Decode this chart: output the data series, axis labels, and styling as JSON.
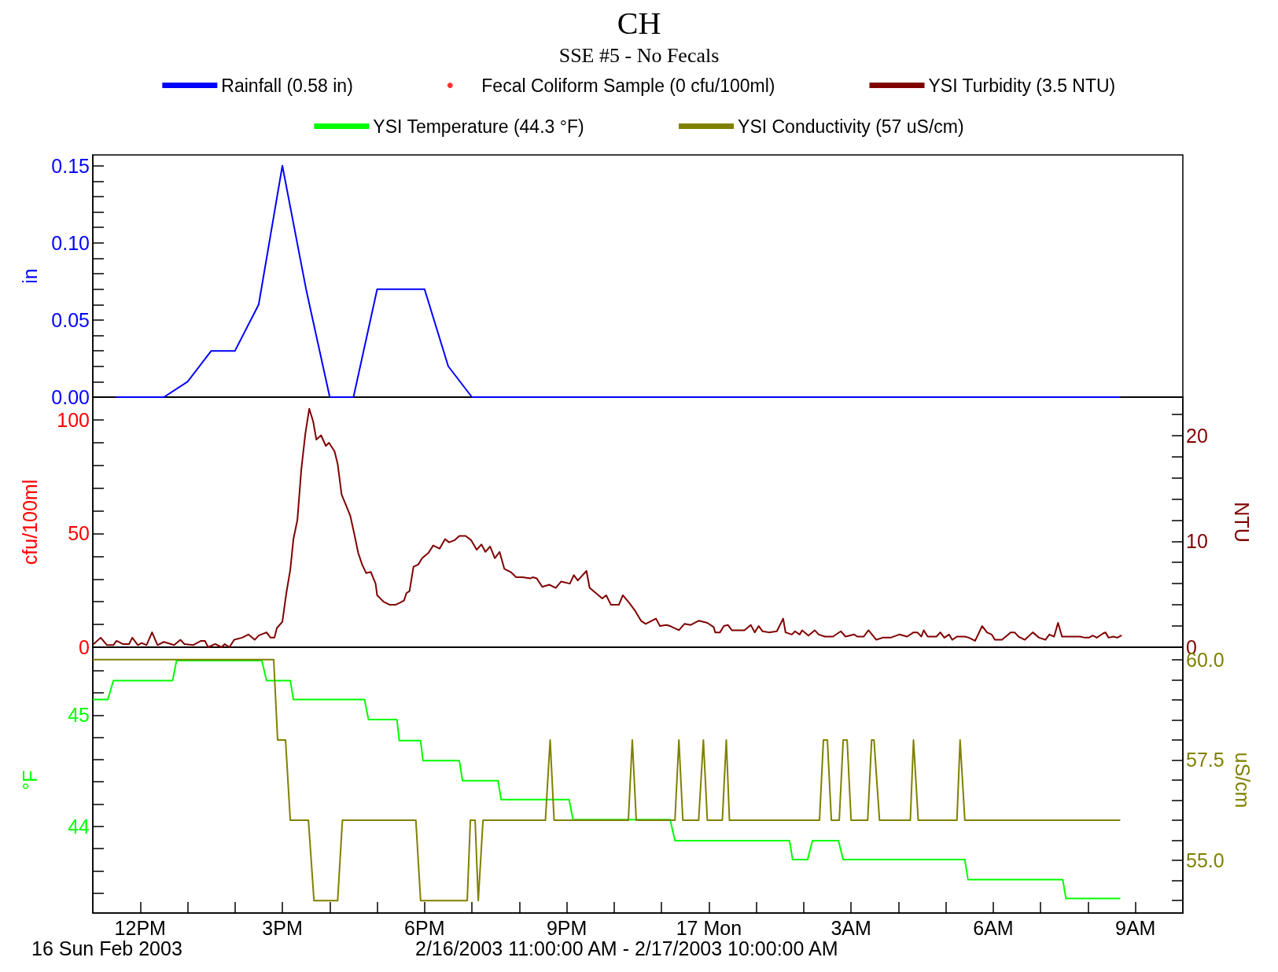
{
  "chart_data": [
    {
      "type": "line",
      "title": "CH",
      "subtitle": "SSE #5 - No Fecals",
      "legend": "top",
      "tick_labels": "y",
      "ylabel": "in",
      "xlim": [
        "2003-02-16T11:00",
        "2003-02-17T10:00"
      ],
      "ylim": [
        0,
        0.157
      ],
      "yticks": [
        {
          "value": 0,
          "label": "0.00"
        },
        {
          "value": 0.01,
          "label": null
        },
        {
          "value": 0.02,
          "label": null
        },
        {
          "value": 0.03,
          "label": null
        },
        {
          "value": 0.04,
          "label": null
        },
        {
          "value": 0.05,
          "label": "0.05"
        },
        {
          "value": 0.06,
          "label": null
        },
        {
          "value": 0.07,
          "label": null
        },
        {
          "value": 0.08,
          "label": null
        },
        {
          "value": 0.09,
          "label": null
        },
        {
          "value": 0.1,
          "label": "0.10"
        },
        {
          "value": 0.11,
          "label": null
        },
        {
          "value": 0.12,
          "label": null
        },
        {
          "value": 0.13,
          "label": null
        },
        {
          "value": 0.14,
          "label": null
        },
        {
          "value": 0.15,
          "label": "0.15"
        }
      ],
      "series": [
        {
          "name": "Rainfall (0.58 in)",
          "color": "#0000ff",
          "x": [
            "2003-02-16T11:30",
            "2003-02-16T12:30",
            "2003-02-16T13:00",
            "2003-02-16T13:30",
            "2003-02-16T14:00",
            "2003-02-16T14:30",
            "2003-02-16T15:00",
            "2003-02-16T15:30",
            "2003-02-16T16:00",
            "2003-02-16T16:30",
            "2003-02-16T17:00",
            "2003-02-16T17:30",
            "2003-02-16T18:00",
            "2003-02-16T18:30",
            "2003-02-16T19:00",
            "2003-02-17T08:40"
          ],
          "values": [
            0,
            0,
            0.01,
            0.03,
            0.03,
            0.06,
            0.15,
            0.07,
            0,
            0,
            0.07,
            0.07,
            0.07,
            0.02,
            0,
            0
          ]
        }
      ]
    },
    {
      "type": "line",
      "legend": "top",
      "tick_labels": "y",
      "ylabel": "cfu/100ml",
      "y2label": "NTU",
      "xlim": [
        "2003-02-16T11:00",
        "2003-02-17T10:00"
      ],
      "ylim": [
        0,
        110
      ],
      "y2lim": [
        0,
        23.6
      ],
      "yticks": [
        0,
        {
          "value": 10,
          "label": null
        },
        {
          "value": 20,
          "label": null
        },
        {
          "value": 30,
          "label": null
        },
        {
          "value": 40,
          "label": null
        },
        50,
        {
          "value": 60,
          "label": null
        },
        {
          "value": 70,
          "label": null
        },
        {
          "value": 80,
          "label": null
        },
        {
          "value": 90,
          "label": null
        },
        100
      ],
      "y2ticks": [
        0,
        {
          "value": 2,
          "label": null
        },
        {
          "value": 4,
          "label": null
        },
        {
          "value": 6,
          "label": null
        },
        {
          "value": 8,
          "label": null
        },
        10,
        {
          "value": 12,
          "label": null
        },
        {
          "value": 14,
          "label": null
        },
        {
          "value": 16,
          "label": null
        },
        {
          "value": 18,
          "label": null
        },
        20,
        {
          "value": 22,
          "label": null
        }
      ],
      "series": [
        {
          "name": "Fecal Coliform Sample (0 cfu/100ml)",
          "type": "scatter",
          "marker": "circle",
          "color": "#ff0000"
        },
        {
          "name": "YSI Turbidity (3.5 NTU)",
          "axis": "y2",
          "color": "#800000",
          "x": [
            "2003-02-16T11:01",
            "2003-02-16T11:10",
            "2003-02-16T11:18",
            "2003-02-16T11:26",
            "2003-02-16T11:30",
            "2003-02-16T11:38",
            "2003-02-16T11:46",
            "2003-02-16T11:50",
            "2003-02-16T11:57",
            "2003-02-16T12:02",
            "2003-02-16T12:08",
            "2003-02-16T12:15",
            "2003-02-16T12:22",
            "2003-02-16T12:30",
            "2003-02-16T12:43",
            "2003-02-16T12:51",
            "2003-02-16T12:56",
            "2003-02-16T13:07",
            "2003-02-16T13:17",
            "2003-02-16T13:22",
            "2003-02-16T13:26",
            "2003-02-16T13:35",
            "2003-02-16T13:43",
            "2003-02-16T13:47",
            "2003-02-16T13:53",
            "2003-02-16T13:59",
            "2003-02-16T14:09",
            "2003-02-16T14:17",
            "2003-02-16T14:25",
            "2003-02-16T14:30",
            "2003-02-16T14:40",
            "2003-02-16T14:45",
            "2003-02-16T14:50",
            "2003-02-16T14:53",
            "2003-02-16T15:00",
            "2003-02-16T15:05",
            "2003-02-16T15:10",
            "2003-02-16T15:14",
            "2003-02-16T15:19",
            "2003-02-16T15:24",
            "2003-02-16T15:29",
            "2003-02-16T15:34",
            "2003-02-16T15:39",
            "2003-02-16T15:43",
            "2003-02-16T15:49",
            "2003-02-16T15:55",
            "2003-02-16T15:59",
            "2003-02-16T16:06",
            "2003-02-16T16:10",
            "2003-02-16T16:15",
            "2003-02-16T16:20",
            "2003-02-16T16:26",
            "2003-02-16T16:31",
            "2003-02-16T16:36",
            "2003-02-16T16:41",
            "2003-02-16T16:46",
            "2003-02-16T16:52",
            "2003-02-16T16:58",
            "2003-02-16T17:00",
            "2003-02-16T17:08",
            "2003-02-16T17:16",
            "2003-02-16T17:23",
            "2003-02-16T17:29",
            "2003-02-16T17:34",
            "2003-02-16T17:37",
            "2003-02-16T17:41",
            "2003-02-16T17:46",
            "2003-02-16T17:52",
            "2003-02-16T17:57",
            "2003-02-16T18:05",
            "2003-02-16T18:11",
            "2003-02-16T18:19",
            "2003-02-16T18:26",
            "2003-02-16T18:31",
            "2003-02-16T18:38",
            "2003-02-16T18:44",
            "2003-02-16T18:52",
            "2003-02-16T18:59",
            "2003-02-16T19:06",
            "2003-02-16T19:12",
            "2003-02-16T19:17",
            "2003-02-16T19:23",
            "2003-02-16T19:29",
            "2003-02-16T19:35",
            "2003-02-16T19:41",
            "2003-02-16T19:49",
            "2003-02-16T19:56",
            "2003-02-16T20:04",
            "2003-02-16T20:14",
            "2003-02-16T20:17",
            "2003-02-16T20:22",
            "2003-02-16T20:29",
            "2003-02-16T20:38",
            "2003-02-16T20:46",
            "2003-02-16T20:53",
            "2003-02-16T21:04",
            "2003-02-16T21:09",
            "2003-02-16T21:14",
            "2003-02-16T21:25",
            "2003-02-16T21:29",
            "2003-02-16T21:37",
            "2003-02-16T21:45",
            "2003-02-16T21:50",
            "2003-02-16T21:56",
            "2003-02-16T22:06",
            "2003-02-16T22:11",
            "2003-02-16T22:19",
            "2003-02-16T22:26",
            "2003-02-16T22:34",
            "2003-02-16T22:40",
            "2003-02-16T22:53",
            "2003-02-16T22:58",
            "2003-02-16T23:06",
            "2003-02-16T23:11",
            "2003-02-16T23:22",
            "2003-02-16T23:29",
            "2003-02-16T23:37",
            "2003-02-16T23:47",
            "2003-02-16T23:58",
            "2003-02-17T00:06",
            "2003-02-17T00:08",
            "2003-02-17T00:14",
            "2003-02-17T00:19",
            "2003-02-17T00:24",
            "2003-02-17T00:29",
            "2003-02-17T00:45",
            "2003-02-17T00:53",
            "2003-02-17T00:58",
            "2003-02-17T01:03",
            "2003-02-17T01:08",
            "2003-02-17T01:16",
            "2003-02-17T01:26",
            "2003-02-17T01:34",
            "2003-02-17T01:37",
            "2003-02-17T01:45",
            "2003-02-17T01:49",
            "2003-02-17T01:55",
            "2003-02-17T01:58",
            "2003-02-17T02:06",
            "2003-02-17T02:14",
            "2003-02-17T02:19",
            "2003-02-17T02:27",
            "2003-02-17T02:37",
            "2003-02-17T02:47",
            "2003-02-17T02:53",
            "2003-02-17T03:04",
            "2003-02-17T03:08",
            "2003-02-17T03:16",
            "2003-02-17T03:22",
            "2003-02-17T03:32",
            "2003-02-17T03:40",
            "2003-02-17T03:50",
            "2003-02-17T04:01",
            "2003-02-17T04:11",
            "2003-02-17T04:19",
            "2003-02-17T04:24",
            "2003-02-17T04:29",
            "2003-02-17T04:32",
            "2003-02-17T04:37",
            "2003-02-17T04:48",
            "2003-02-17T04:53",
            "2003-02-17T04:58",
            "2003-02-17T05:04",
            "2003-02-17T05:08",
            "2003-02-17T05:14",
            "2003-02-17T05:24",
            "2003-02-17T05:29",
            "2003-02-17T05:37",
            "2003-02-17T05:46",
            "2003-02-17T05:52",
            "2003-02-17T05:58",
            "2003-02-17T06:02",
            "2003-02-17T06:11",
            "2003-02-17T06:22",
            "2003-02-17T06:27",
            "2003-02-17T06:32",
            "2003-02-17T06:40",
            "2003-02-17T06:50",
            "2003-02-17T06:58",
            "2003-02-17T07:06",
            "2003-02-17T07:11",
            "2003-02-17T07:17",
            "2003-02-17T07:22",
            "2003-02-17T07:27",
            "2003-02-17T07:50",
            "2003-02-17T07:56",
            "2003-02-17T08:01",
            "2003-02-17T08:06",
            "2003-02-17T08:11",
            "2003-02-17T08:19",
            "2003-02-17T08:22",
            "2003-02-17T08:26",
            "2003-02-17T08:32",
            "2003-02-17T08:37",
            "2003-02-17T08:42"
          ],
          "values": [
            0.3,
            0.9,
            0.2,
            0.2,
            0.6,
            0.3,
            0.3,
            0.9,
            0.2,
            0.4,
            0.2,
            1.4,
            0.2,
            0.5,
            0.2,
            0.7,
            0.3,
            0.2,
            0.6,
            0.6,
            0.0,
            0.3,
            0.0,
            0.3,
            0.0,
            0.7,
            0.9,
            1.2,
            0.7,
            1.1,
            1.4,
            0.9,
            0.9,
            1.8,
            2.4,
            5.1,
            7.3,
            10.2,
            12.0,
            16.8,
            20.1,
            22.5,
            21.3,
            19.6,
            20.0,
            19.0,
            19.3,
            18.5,
            17.3,
            14.4,
            13.5,
            12.4,
            10.7,
            8.9,
            7.8,
            7.0,
            7.1,
            6.0,
            4.9,
            4.3,
            4.0,
            4.0,
            4.2,
            4.4,
            5.1,
            5.3,
            7.6,
            7.8,
            8.4,
            8.9,
            9.6,
            9.3,
            10.2,
            9.9,
            10.1,
            10.5,
            10.5,
            10.1,
            9.2,
            9.7,
            9.0,
            9.5,
            8.4,
            9.0,
            7.4,
            7.1,
            6.6,
            6.6,
            6.5,
            6.6,
            6.5,
            5.7,
            5.9,
            5.6,
            6.2,
            6.0,
            6.8,
            6.3,
            7.2,
            5.6,
            5.1,
            4.6,
            4.9,
            4.0,
            4.0,
            4.9,
            4.2,
            3.5,
            2.5,
            2.2,
            2.7,
            2.0,
            2.1,
            2.0,
            1.6,
            2.2,
            2.1,
            2.5,
            2.3,
            1.9,
            1.4,
            1.4,
            2.0,
            2.1,
            1.6,
            1.6,
            2.1,
            1.4,
            2.0,
            1.5,
            1.4,
            1.5,
            2.7,
            1.4,
            1.2,
            1.5,
            1.2,
            1.6,
            1.1,
            1.6,
            1.2,
            1.0,
            1.0,
            1.5,
            1.0,
            1.2,
            1.0,
            1.0,
            1.6,
            0.7,
            0.9,
            0.9,
            1.2,
            1.0,
            1.4,
            1.4,
            1.0,
            1.6,
            1.0,
            1.0,
            1.4,
            0.9,
            1.2,
            0.7,
            1.0,
            1.0,
            0.9,
            0.6,
            2.0,
            1.4,
            1.2,
            0.7,
            0.7,
            1.4,
            1.4,
            1.0,
            0.7,
            1.4,
            0.9,
            0.7,
            1.2,
            1.0,
            2.3,
            1.0,
            1.0,
            0.9,
            0.9,
            1.1,
            0.9,
            1.3,
            1.4,
            0.9,
            1.0,
            0.9,
            1.1
          ]
        }
      ]
    },
    {
      "type": "line",
      "legend": "top",
      "ylabel": "°F",
      "y2label": "uS/cm",
      "xlim": [
        "2003-02-16T11:00",
        "2003-02-17T10:00"
      ],
      "ylim": [
        43.22,
        45.61
      ],
      "y2lim": [
        53.69,
        60.31
      ],
      "xticks": [
        {
          "value": "2003-02-16T12:00",
          "label": "12PM"
        },
        {
          "value": "2003-02-16T13:00",
          "label": null
        },
        {
          "value": "2003-02-16T14:00",
          "label": null
        },
        {
          "value": "2003-02-16T15:00",
          "label": "3PM"
        },
        {
          "value": "2003-02-16T16:00",
          "label": null
        },
        {
          "value": "2003-02-16T17:00",
          "label": null
        },
        {
          "value": "2003-02-16T18:00",
          "label": "6PM"
        },
        {
          "value": "2003-02-16T19:00",
          "label": null
        },
        {
          "value": "2003-02-16T20:00",
          "label": null
        },
        {
          "value": "2003-02-16T21:00",
          "label": "9PM"
        },
        {
          "value": "2003-02-16T22:00",
          "label": null
        },
        {
          "value": "2003-02-16T23:00",
          "label": null
        },
        {
          "value": "2003-02-17T00:00",
          "label": "17 Mon"
        },
        {
          "value": "2003-02-17T01:00",
          "label": null
        },
        {
          "value": "2003-02-17T02:00",
          "label": null
        },
        {
          "value": "2003-02-17T03:00",
          "label": "3AM"
        },
        {
          "value": "2003-02-17T04:00",
          "label": null
        },
        {
          "value": "2003-02-17T05:00",
          "label": null
        },
        {
          "value": "2003-02-17T06:00",
          "label": "6AM"
        },
        {
          "value": "2003-02-17T07:00",
          "label": null
        },
        {
          "value": "2003-02-17T08:00",
          "label": null
        },
        {
          "value": "2003-02-17T09:00",
          "label": "9AM"
        }
      ],
      "yticks": [
        {
          "value": 43.4,
          "label": null
        },
        {
          "value": 43.6,
          "label": null
        },
        {
          "value": 43.8,
          "label": null
        },
        44,
        {
          "value": 44.2,
          "label": null
        },
        {
          "value": 44.4,
          "label": null
        },
        {
          "value": 44.6,
          "label": null
        },
        {
          "value": 44.8,
          "label": null
        },
        45,
        {
          "value": 45.2,
          "label": null
        },
        {
          "value": 45.4,
          "label": null
        }
      ],
      "y2ticks": [
        {
          "value": 54,
          "label": null
        },
        {
          "value": 54.5,
          "label": null
        },
        {
          "value": 55,
          "label": "55.0"
        },
        {
          "value": 55.5,
          "label": null
        },
        {
          "value": 56,
          "label": null
        },
        {
          "value": 56.5,
          "label": null
        },
        {
          "value": 57,
          "label": null
        },
        57.5,
        {
          "value": 58,
          "label": null
        },
        {
          "value": 58.5,
          "label": null
        },
        {
          "value": 59,
          "label": null
        },
        {
          "value": 59.5,
          "label": null
        },
        {
          "value": 60,
          "label": "60.0"
        }
      ],
      "annotations": [
        "16 Sun Feb 2003",
        "2/16/2003 11:00:00 AM - 2/17/2003 10:00:00 AM"
      ],
      "series": [
        {
          "name": "YSI Temperature (44.3 °F)",
          "color": "#00ff00",
          "x": [
            "2003-02-16T11:01",
            "2003-02-16T11:19",
            "2003-02-16T11:26",
            "2003-02-16T12:41",
            "2003-02-16T12:46",
            "2003-02-16T14:34",
            "2003-02-16T14:40",
            "2003-02-16T15:10",
            "2003-02-16T15:14",
            "2003-02-16T16:44",
            "2003-02-16T16:49",
            "2003-02-16T17:25",
            "2003-02-16T17:28",
            "2003-02-16T17:55",
            "2003-02-16T17:58",
            "2003-02-16T18:44",
            "2003-02-16T18:48",
            "2003-02-16T19:33",
            "2003-02-16T19:37",
            "2003-02-16T21:03",
            "2003-02-16T21:08",
            "2003-02-16T23:11",
            "2003-02-16T23:17",
            "2003-02-17T01:42",
            "2003-02-17T01:46",
            "2003-02-17T02:05",
            "2003-02-17T02:11",
            "2003-02-17T02:44",
            "2003-02-17T02:50",
            "2003-02-17T05:24",
            "2003-02-17T05:28",
            "2003-02-17T07:28",
            "2003-02-17T07:32",
            "2003-02-17T08:40"
          ],
          "values": [
            45.14,
            45.14,
            45.31,
            45.31,
            45.49,
            45.49,
            45.31,
            45.31,
            45.14,
            45.14,
            44.96,
            44.96,
            44.77,
            44.77,
            44.59,
            44.59,
            44.41,
            44.41,
            44.24,
            44.24,
            44.06,
            44.06,
            43.87,
            43.87,
            43.7,
            43.7,
            43.87,
            43.87,
            43.7,
            43.7,
            43.52,
            43.52,
            43.35,
            43.35
          ]
        },
        {
          "name": "YSI Conductivity (57 uS/cm)",
          "axis": "y2",
          "color": "#808000",
          "x": [
            "2003-02-16T11:01",
            "2003-02-16T14:49",
            "2003-02-16T14:54",
            "2003-02-16T15:04",
            "2003-02-16T15:10",
            "2003-02-16T15:33",
            "2003-02-16T15:40",
            "2003-02-16T16:10",
            "2003-02-16T16:16",
            "2003-02-16T17:49",
            "2003-02-16T17:55",
            "2003-02-16T18:54",
            "2003-02-16T18:58",
            "2003-02-16T19:04",
            "2003-02-16T19:08",
            "2003-02-16T19:14",
            "2003-02-16T20:33",
            "2003-02-16T20:39",
            "2003-02-16T20:44",
            "2003-02-16T22:18",
            "2003-02-16T22:23",
            "2003-02-16T22:28",
            "2003-02-16T23:17",
            "2003-02-16T23:22",
            "2003-02-16T23:27",
            "2003-02-16T23:47",
            "2003-02-16T23:53",
            "2003-02-16T23:58",
            "2003-02-17T00:17",
            "2003-02-17T00:22",
            "2003-02-17T00:26",
            "2003-02-17T02:20",
            "2003-02-17T02:25",
            "2003-02-17T02:30",
            "2003-02-17T02:35",
            "2003-02-17T02:45",
            "2003-02-17T02:50",
            "2003-02-17T02:55",
            "2003-02-17T03:00",
            "2003-02-17T03:21",
            "2003-02-17T03:26",
            "2003-02-17T03:29",
            "2003-02-17T03:36",
            "2003-02-17T04:15",
            "2003-02-17T04:19",
            "2003-02-17T04:25",
            "2003-02-17T05:14",
            "2003-02-17T05:18",
            "2003-02-17T05:24",
            "2003-02-17T08:40"
          ],
          "values": [
            60,
            60,
            58,
            58,
            56,
            56,
            54,
            54,
            56,
            56,
            54,
            54,
            56,
            56,
            54,
            56,
            56,
            58,
            56,
            56,
            58,
            56,
            56,
            58,
            56,
            56,
            58,
            56,
            56,
            58,
            56,
            56,
            58,
            58,
            56,
            56,
            58,
            58,
            56,
            56,
            58,
            58,
            56,
            56,
            58,
            56,
            56,
            58,
            56,
            56
          ]
        }
      ]
    }
  ]
}
